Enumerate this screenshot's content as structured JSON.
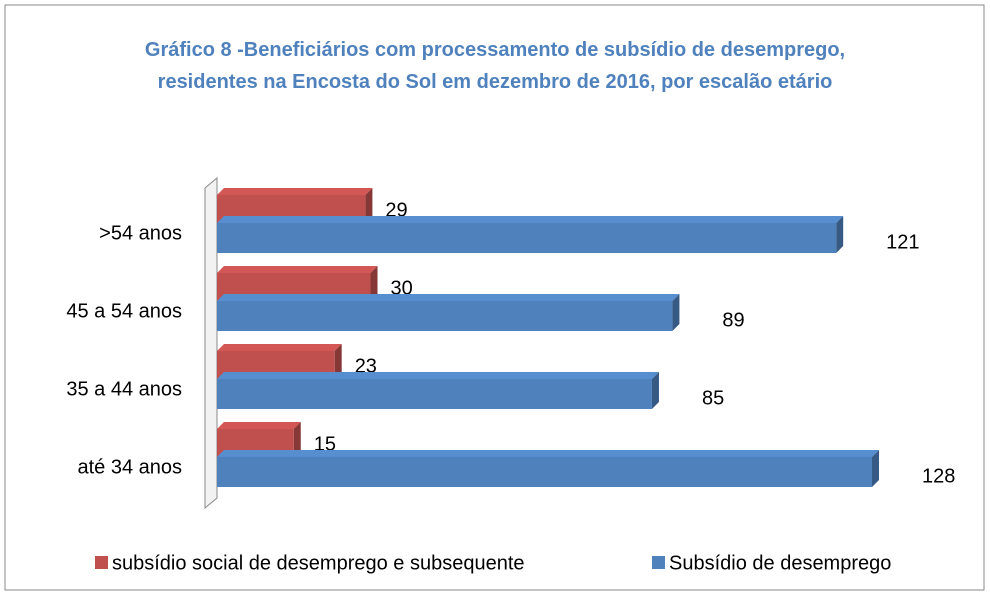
{
  "chart_data": {
    "type": "bar",
    "orientation": "horizontal",
    "title": "Gráfico 8 -Beneficiários com processamento de subsídio de desemprego, residentes na Encosta do Sol  em dezembro de 2016, por escalão etário",
    "categories": [
      "até 34 anos",
      "35 a 44 anos",
      "45 a 54 anos",
      ">54 anos"
    ],
    "series": [
      {
        "name": "subsídio social de desemprego e subsequente",
        "color": "#c0504d",
        "values": [
          15,
          23,
          30,
          29
        ]
      },
      {
        "name": "Subsídio de desemprego",
        "color": "#4f81bd",
        "values": [
          128,
          85,
          89,
          121
        ]
      }
    ],
    "legend": "bottom"
  }
}
